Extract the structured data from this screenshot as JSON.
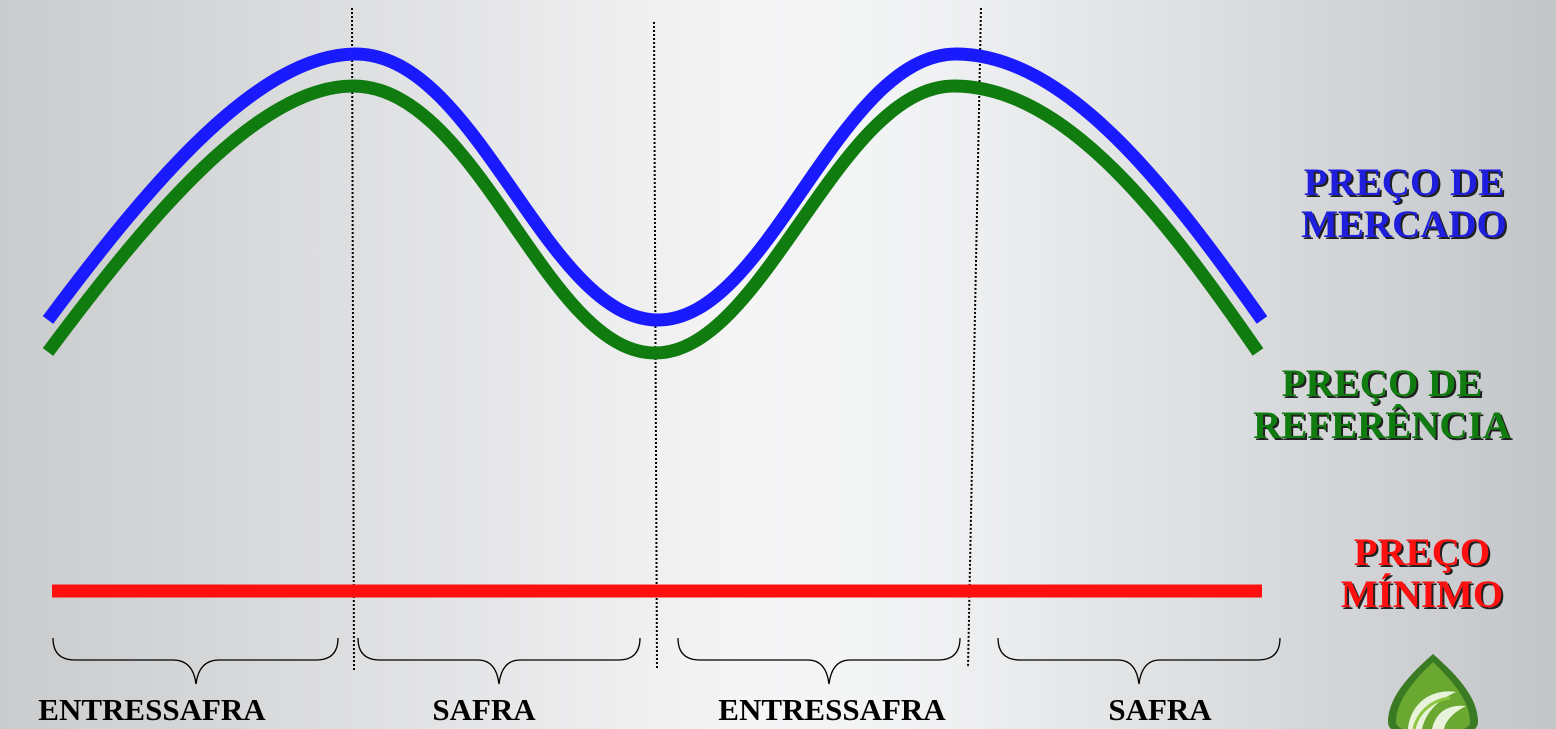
{
  "legend": {
    "market": {
      "line1": "PREÇO DE",
      "line2": "MERCADO",
      "color": "#1e1edc"
    },
    "reference": {
      "line1": "PREÇO DE",
      "line2": "REFERÊNCIA",
      "color": "#107c10"
    },
    "minimum": {
      "line1": "PREÇO",
      "line2": "MÍNIMO",
      "color": "#ff1010"
    }
  },
  "periods": [
    {
      "label": "ENTRESSAFRA"
    },
    {
      "label": "SAFRA"
    },
    {
      "label": "ENTRESSAFRA"
    },
    {
      "label": "SAFRA"
    }
  ],
  "logo": {
    "icon": "leaf-drop-logo-icon",
    "colors": [
      "#3a7a22",
      "#8cc63f"
    ]
  }
}
